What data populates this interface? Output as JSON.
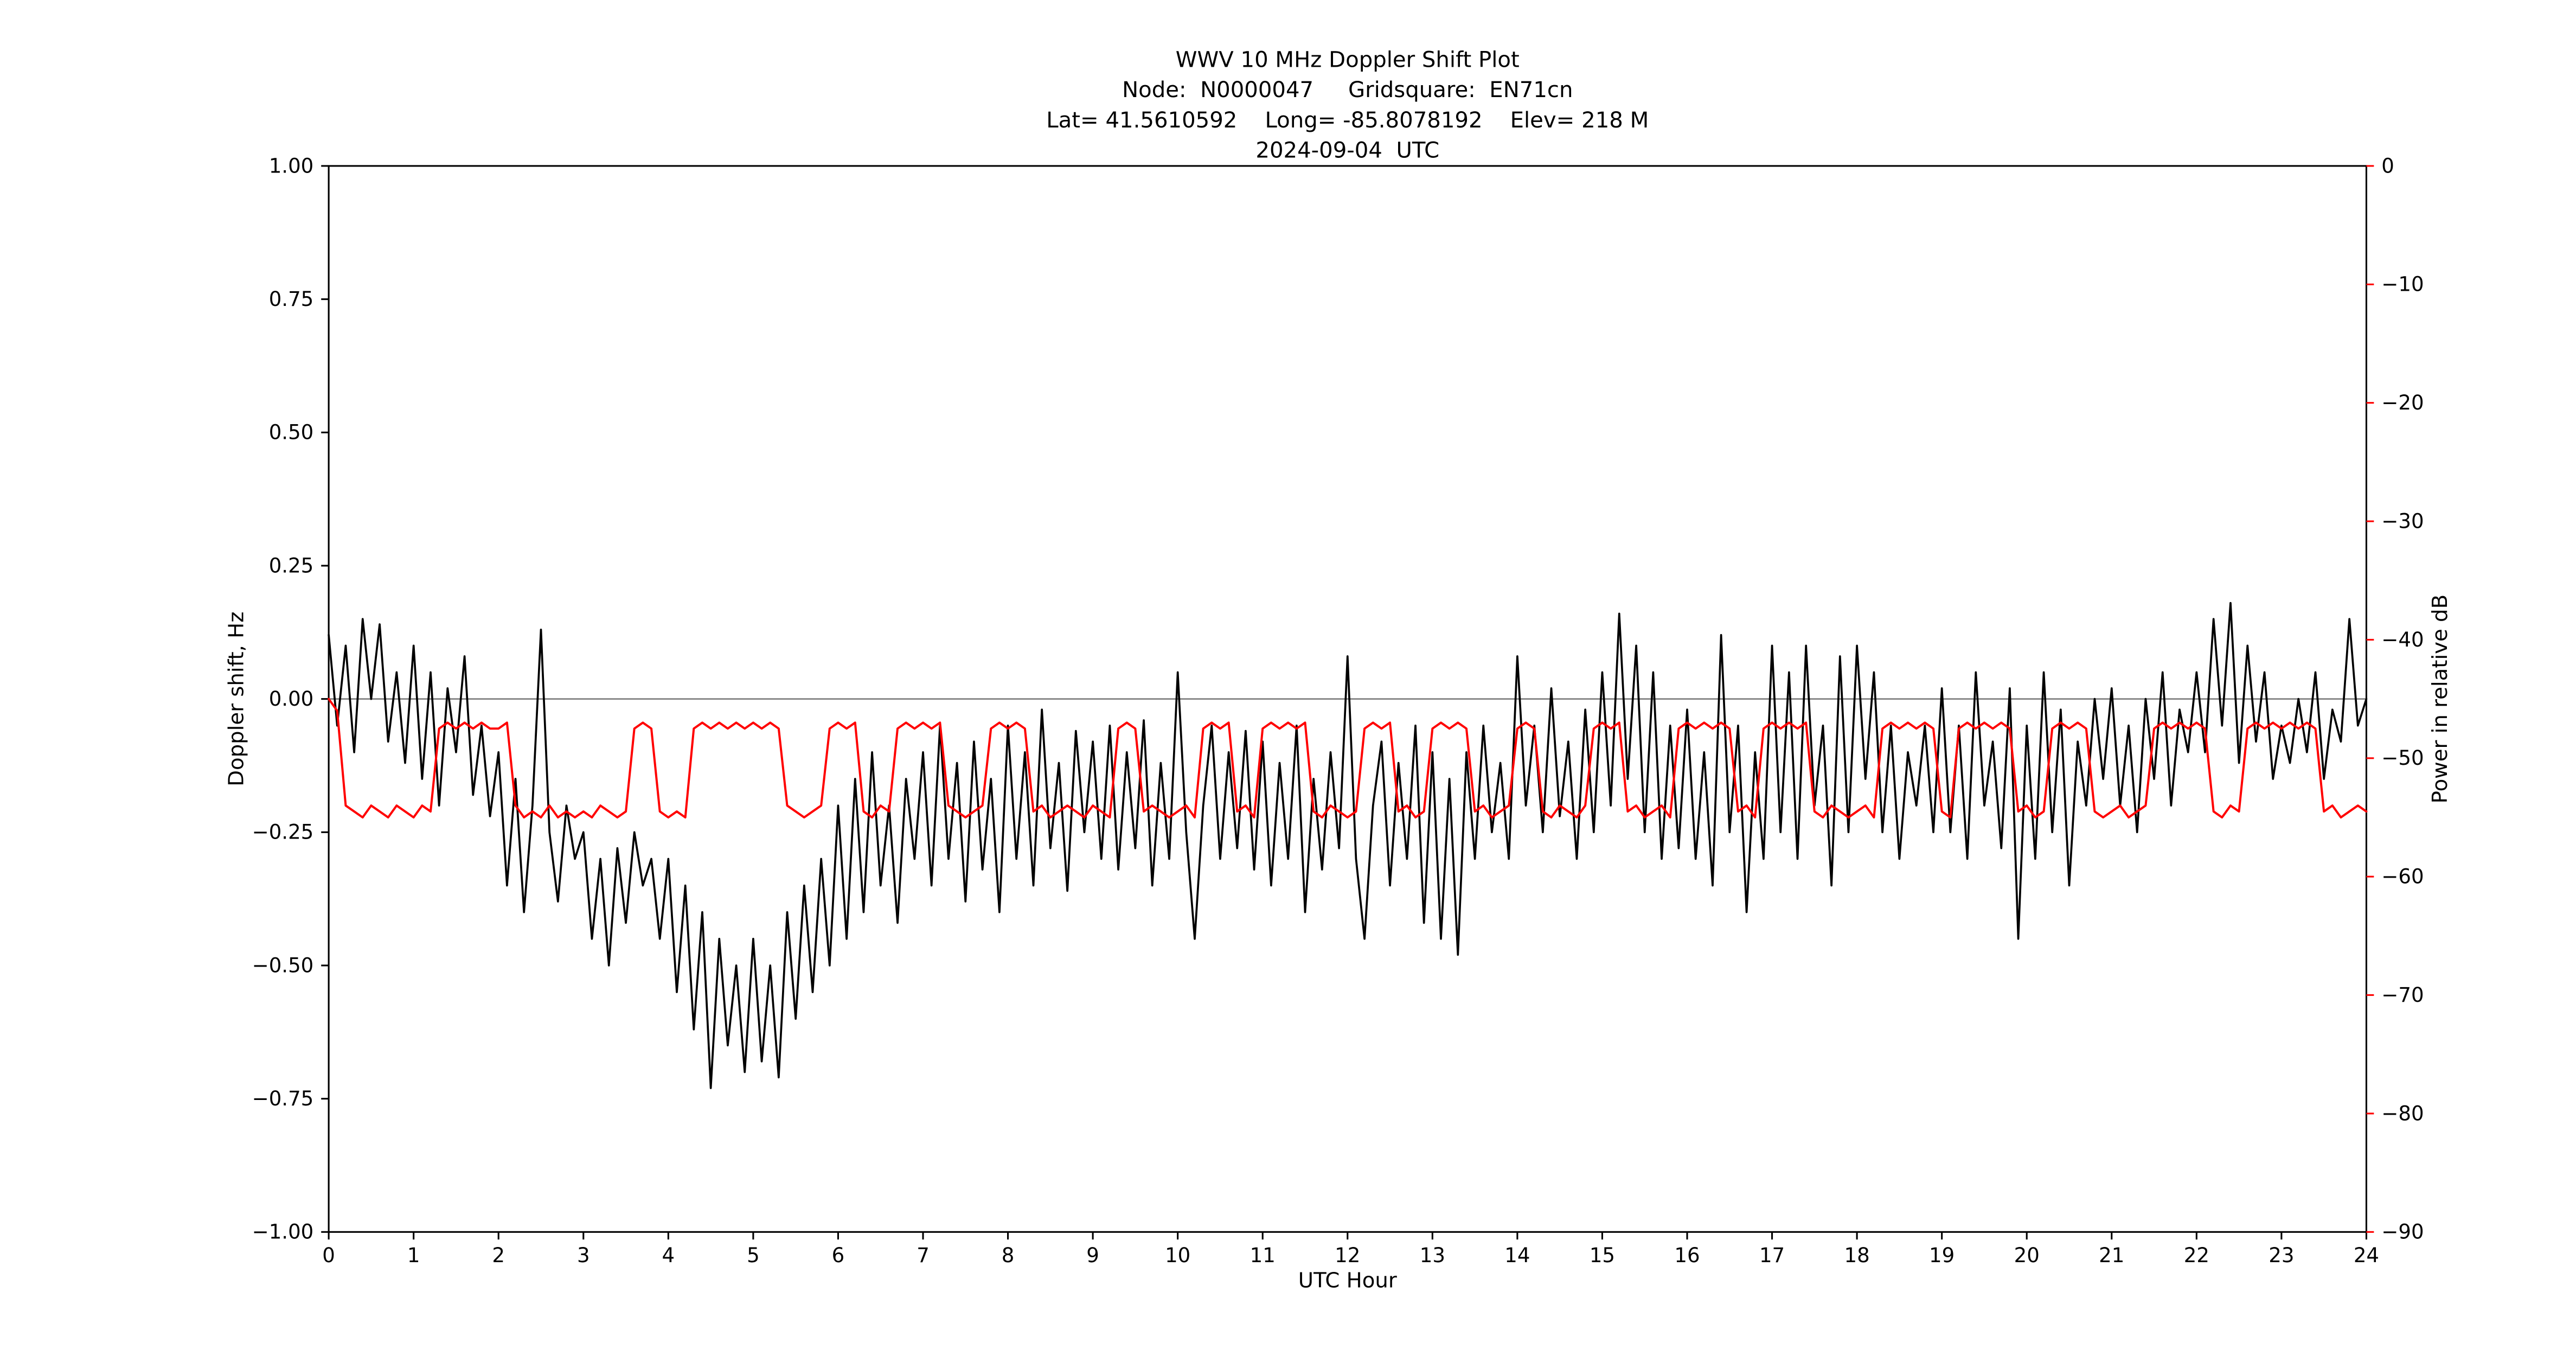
{
  "figure": {
    "title_lines": [
      "WWV 10 MHz Doppler Shift Plot",
      "Node:  N0000047     Gridsquare:  EN71cn",
      "Lat= 41.5610592    Long= -85.8078192    Elev= 218 M",
      "2024-09-04  UTC"
    ],
    "xlabel": "UTC Hour",
    "ylabel_left": "Doppler shift, Hz",
    "ylabel_right": "Power in relative dB",
    "colors": {
      "doppler_line": "#000000",
      "power_line": "#ff0000",
      "right_axis_text": "#ff0000",
      "zero_line": "#808080",
      "frame": "#000000",
      "background": "#ffffff"
    }
  },
  "chart_data": {
    "type": "line",
    "title": "WWV 10 MHz Doppler Shift Plot",
    "xlabel": "UTC Hour",
    "ylabel_left": "Doppler shift, Hz",
    "ylabel_right": "Power in relative dB",
    "xlim": [
      0,
      24
    ],
    "ylim_left": [
      -1.0,
      1.0
    ],
    "ylim_right": [
      -90,
      0
    ],
    "grid": false,
    "legend": "none",
    "zero_line_y": 0.0,
    "x_ticks": [
      0,
      1,
      2,
      3,
      4,
      5,
      6,
      7,
      8,
      9,
      10,
      11,
      12,
      13,
      14,
      15,
      16,
      17,
      18,
      19,
      20,
      21,
      22,
      23,
      24
    ],
    "y_ticks_left": {
      "values": [
        1.0,
        0.75,
        0.5,
        0.25,
        0.0,
        -0.25,
        -0.5,
        -0.75,
        -1.0
      ],
      "labels": [
        "1.00",
        "0.75",
        "0.50",
        "0.25",
        "0.00",
        "−0.25",
        "−0.50",
        "−0.75",
        "−1.00"
      ]
    },
    "y_ticks_right": {
      "values": [
        0,
        -10,
        -20,
        -30,
        -40,
        -50,
        -60,
        -70,
        -80,
        -90
      ],
      "labels": [
        "0",
        "−10",
        "−20",
        "−30",
        "−40",
        "−50",
        "−60",
        "−70",
        "−80",
        "−90"
      ]
    },
    "x_start": 0,
    "x_step": 0.1,
    "series": [
      {
        "name": "Doppler shift",
        "axis": "left",
        "color": "#000000",
        "width": 1.2,
        "y": [
          0.12,
          -0.05,
          0.1,
          -0.1,
          0.15,
          0.0,
          0.14,
          -0.08,
          0.05,
          -0.12,
          0.1,
          -0.15,
          0.05,
          -0.2,
          0.02,
          -0.1,
          0.08,
          -0.18,
          -0.05,
          -0.22,
          -0.1,
          -0.35,
          -0.15,
          -0.4,
          -0.2,
          0.13,
          -0.25,
          -0.38,
          -0.2,
          -0.3,
          -0.25,
          -0.45,
          -0.3,
          -0.5,
          -0.28,
          -0.42,
          -0.25,
          -0.35,
          -0.3,
          -0.45,
          -0.3,
          -0.55,
          -0.35,
          -0.62,
          -0.4,
          -0.73,
          -0.45,
          -0.65,
          -0.5,
          -0.7,
          -0.45,
          -0.68,
          -0.5,
          -0.71,
          -0.4,
          -0.6,
          -0.35,
          -0.55,
          -0.3,
          -0.5,
          -0.2,
          -0.45,
          -0.15,
          -0.4,
          -0.1,
          -0.35,
          -0.2,
          -0.42,
          -0.15,
          -0.3,
          -0.1,
          -0.35,
          -0.05,
          -0.3,
          -0.12,
          -0.38,
          -0.08,
          -0.32,
          -0.15,
          -0.4,
          -0.05,
          -0.3,
          -0.1,
          -0.35,
          -0.02,
          -0.28,
          -0.12,
          -0.36,
          -0.06,
          -0.25,
          -0.08,
          -0.3,
          -0.05,
          -0.32,
          -0.1,
          -0.28,
          -0.04,
          -0.35,
          -0.12,
          -0.3,
          0.05,
          -0.25,
          -0.45,
          -0.2,
          -0.05,
          -0.3,
          -0.1,
          -0.28,
          -0.06,
          -0.32,
          -0.08,
          -0.35,
          -0.12,
          -0.3,
          -0.05,
          -0.4,
          -0.15,
          -0.32,
          -0.1,
          -0.28,
          0.08,
          -0.3,
          -0.45,
          -0.2,
          -0.08,
          -0.35,
          -0.12,
          -0.3,
          -0.05,
          -0.42,
          -0.1,
          -0.45,
          -0.15,
          -0.48,
          -0.1,
          -0.3,
          -0.05,
          -0.25,
          -0.12,
          -0.3,
          0.08,
          -0.2,
          -0.05,
          -0.25,
          0.02,
          -0.22,
          -0.08,
          -0.3,
          -0.02,
          -0.25,
          0.05,
          -0.2,
          0.16,
          -0.15,
          0.1,
          -0.25,
          0.05,
          -0.3,
          -0.05,
          -0.28,
          -0.02,
          -0.3,
          -0.1,
          -0.35,
          0.12,
          -0.25,
          -0.05,
          -0.4,
          -0.1,
          -0.3,
          0.1,
          -0.25,
          0.05,
          -0.3,
          0.1,
          -0.2,
          -0.05,
          -0.35,
          0.08,
          -0.25,
          0.1,
          -0.15,
          0.05,
          -0.25,
          -0.05,
          -0.3,
          -0.1,
          -0.2,
          -0.05,
          -0.25,
          0.02,
          -0.25,
          -0.05,
          -0.3,
          0.05,
          -0.2,
          -0.08,
          -0.28,
          0.02,
          -0.45,
          -0.05,
          -0.3,
          0.05,
          -0.25,
          -0.02,
          -0.35,
          -0.08,
          -0.2,
          0.0,
          -0.15,
          0.02,
          -0.2,
          -0.05,
          -0.25,
          0.0,
          -0.15,
          0.05,
          -0.2,
          -0.02,
          -0.1,
          0.05,
          -0.1,
          0.15,
          -0.05,
          0.18,
          -0.12,
          0.1,
          -0.08,
          0.05,
          -0.15,
          -0.05,
          -0.12,
          0.0,
          -0.1,
          0.05,
          -0.15,
          -0.02,
          -0.08,
          0.15,
          -0.05,
          0.0
        ]
      },
      {
        "name": "Power in relative dB",
        "axis": "right",
        "color": "#ff0000",
        "width": 1.3,
        "y": [
          -45,
          -46,
          -54,
          -54.5,
          -55,
          -54,
          -54.5,
          -55,
          -54,
          -54.5,
          -55,
          -54,
          -54.5,
          -47.5,
          -47,
          -47.5,
          -47,
          -47.5,
          -47,
          -47.5,
          -47.5,
          -47,
          -54,
          -55,
          -54.5,
          -55,
          -54,
          -55,
          -54.5,
          -55,
          -54.5,
          -55,
          -54,
          -54.5,
          -55,
          -54.5,
          -47.5,
          -47,
          -47.5,
          -54.5,
          -55,
          -54.5,
          -55,
          -47.5,
          -47,
          -47.5,
          -47,
          -47.5,
          -47,
          -47.5,
          -47,
          -47.5,
          -47,
          -47.5,
          -54,
          -54.5,
          -55,
          -54.5,
          -54,
          -47.5,
          -47,
          -47.5,
          -47,
          -54.5,
          -55,
          -54,
          -54.5,
          -47.5,
          -47,
          -47.5,
          -47,
          -47.5,
          -47,
          -54,
          -54.5,
          -55,
          -54.5,
          -54,
          -47.5,
          -47,
          -47.5,
          -47,
          -47.5,
          -54.5,
          -54,
          -55,
          -54.5,
          -54,
          -54.5,
          -55,
          -54,
          -54.5,
          -55,
          -47.5,
          -47,
          -47.5,
          -54.5,
          -54,
          -54.5,
          -55,
          -54.5,
          -54,
          -55,
          -47.5,
          -47,
          -47.5,
          -47,
          -54.5,
          -54,
          -55,
          -47.5,
          -47,
          -47.5,
          -47,
          -47.5,
          -47,
          -54.5,
          -55,
          -54,
          -54.5,
          -55,
          -54.5,
          -47.5,
          -47,
          -47.5,
          -47,
          -54.5,
          -54,
          -55,
          -54.5,
          -47.5,
          -47,
          -47.5,
          -47,
          -47.5,
          -54.5,
          -54,
          -55,
          -54.5,
          -54,
          -47.5,
          -47,
          -47.5,
          -54.5,
          -55,
          -54,
          -54.5,
          -55,
          -54,
          -47.5,
          -47,
          -47.5,
          -47,
          -54.5,
          -54,
          -55,
          -54.5,
          -54,
          -55,
          -47.5,
          -47,
          -47.5,
          -47,
          -47.5,
          -47,
          -47.5,
          -54.5,
          -54,
          -55,
          -47.5,
          -47,
          -47.5,
          -47,
          -47.5,
          -47,
          -54.5,
          -55,
          -54,
          -54.5,
          -55,
          -54.5,
          -54,
          -55,
          -47.5,
          -47,
          -47.5,
          -47,
          -47.5,
          -47,
          -47.5,
          -54.5,
          -55,
          -47.5,
          -47,
          -47.5,
          -47,
          -47.5,
          -47,
          -47.5,
          -54.5,
          -54,
          -55,
          -54.5,
          -47.5,
          -47,
          -47.5,
          -47,
          -47.5,
          -54.5,
          -55,
          -54.5,
          -54,
          -55,
          -54.5,
          -54,
          -47.5,
          -47,
          -47.5,
          -47,
          -47.5,
          -47,
          -47.5,
          -54.5,
          -55,
          -54,
          -54.5,
          -47.5,
          -47,
          -47.5,
          -47,
          -47.5,
          -47,
          -47.5,
          -47,
          -47.5,
          -54.5,
          -54,
          -55,
          -54.5,
          -54,
          -54.5
        ]
      }
    ]
  }
}
